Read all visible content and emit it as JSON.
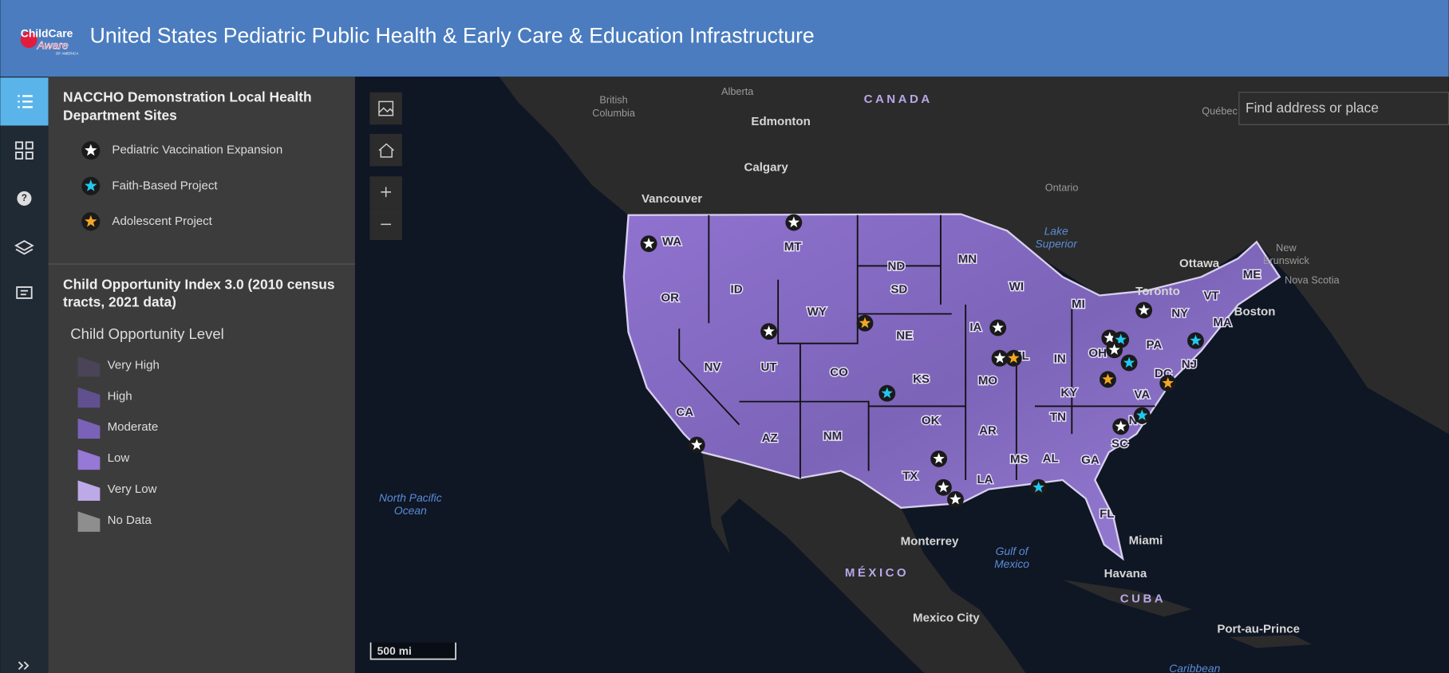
{
  "header": {
    "logo_lines": [
      "ChildCare",
      "Aware",
      "OF AMERICA"
    ],
    "title": "United States Pediatric Public Health & Early Care & Education Infrastructure"
  },
  "legend": {
    "sites_title": [
      "NACCHO Demonstration Local Health",
      "Department Sites"
    ],
    "sites": [
      {
        "label": "Pediatric Vaccination Expansion",
        "color": "#ffffff"
      },
      {
        "label": "Faith-Based Project",
        "color": "#22c8f0"
      },
      {
        "label": "Adolescent Project",
        "color": "#f5a623"
      }
    ],
    "coi_title": [
      "Child Opportunity Index 3.0 (2010 census",
      "tracts, 2021 data)"
    ],
    "coi_subtitle": "Child Opportunity Level",
    "levels": [
      {
        "label": "Very High",
        "color": "#4a4458"
      },
      {
        "label": "High",
        "color": "#61508f"
      },
      {
        "label": "Moderate",
        "color": "#7a62b8"
      },
      {
        "label": "Low",
        "color": "#9678d6"
      },
      {
        "label": "Very Low",
        "color": "#bca9e8"
      },
      {
        "label": "No Data",
        "color": "#8e8e8e"
      }
    ]
  },
  "search": {
    "placeholder": "Find address or place"
  },
  "scale": "500 mi",
  "map": {
    "states": [
      "WA",
      "MT",
      "ND",
      "MN",
      "OR",
      "ID",
      "WY",
      "SD",
      "WI",
      "MI",
      "NY",
      "VT",
      "ME",
      "MA",
      "NV",
      "UT",
      "CO",
      "NE",
      "IA",
      "IL",
      "IN",
      "OH",
      "PA",
      "NJ",
      "DC",
      "KS",
      "MO",
      "KY",
      "VA",
      "CA",
      "AZ",
      "NM",
      "OK",
      "AR",
      "TN",
      "NC",
      "SC",
      "MS",
      "AL",
      "GA",
      "TX",
      "LA",
      "FL"
    ],
    "places": [
      {
        "lines": [
          "British",
          "Columbia"
        ]
      },
      {
        "lines": [
          "Alberta"
        ]
      },
      {
        "lines": [
          "CANADA"
        ]
      },
      {
        "lines": [
          "Edmonton"
        ]
      },
      {
        "lines": [
          "Québec"
        ]
      },
      {
        "lines": [
          "Calgary"
        ]
      },
      {
        "lines": [
          "Vancouver"
        ]
      },
      {
        "lines": [
          "Ontario"
        ]
      },
      {
        "lines": [
          "Lake",
          "Superior"
        ]
      },
      {
        "lines": [
          "New",
          "Brunswick"
        ]
      },
      {
        "lines": [
          "Nova Scotia"
        ]
      },
      {
        "lines": [
          "Ottawa"
        ]
      },
      {
        "lines": [
          "Toronto"
        ]
      },
      {
        "lines": [
          "Boston"
        ]
      },
      {
        "lines": [
          "North Pacific",
          "Ocean"
        ]
      },
      {
        "lines": [
          "Monterrey"
        ]
      },
      {
        "lines": [
          "Gulf of",
          "Mexico"
        ]
      },
      {
        "lines": [
          "Miami"
        ]
      },
      {
        "lines": [
          "Havana"
        ]
      },
      {
        "lines": [
          "MÉXICO"
        ]
      },
      {
        "lines": [
          "CUBA"
        ]
      },
      {
        "lines": [
          "Mexico City"
        ]
      },
      {
        "lines": [
          "Port-au-Prince"
        ]
      },
      {
        "lines": [
          "Caribbean"
        ]
      }
    ]
  }
}
